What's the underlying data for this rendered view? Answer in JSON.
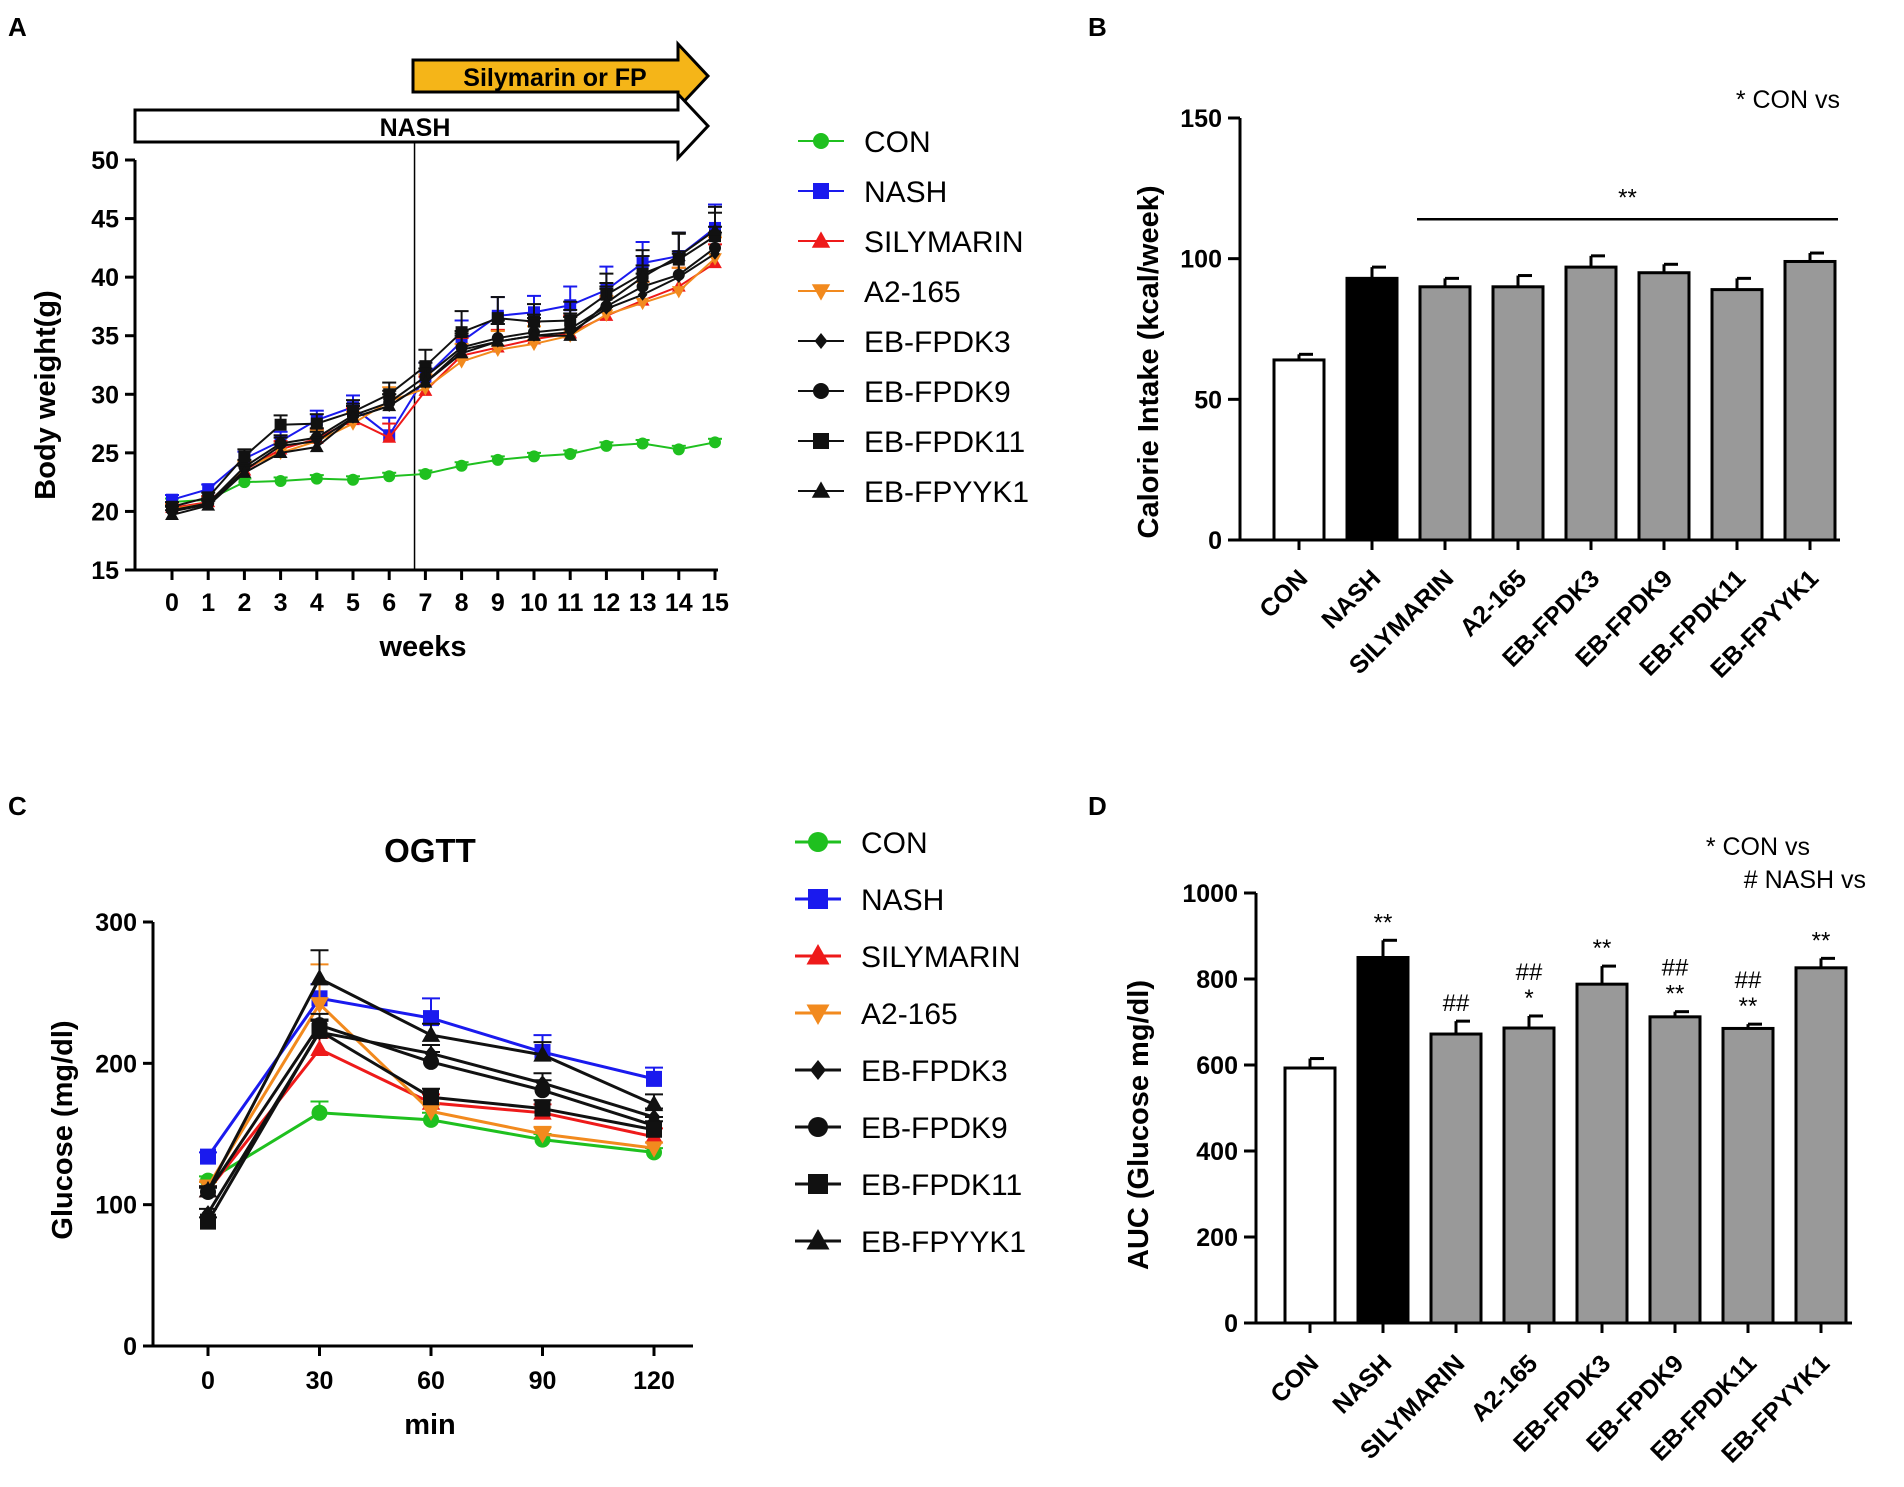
{
  "figure": {
    "labels": {
      "a": "A",
      "b": "B",
      "c": "C",
      "d": "D"
    }
  },
  "chart_data": [
    {
      "id": "A",
      "type": "line",
      "xlabel": "weeks",
      "ylabel": "Body weight(g)",
      "ylim": [
        15,
        50
      ],
      "yticks": [
        15,
        20,
        25,
        30,
        35,
        40,
        45,
        50
      ],
      "x": [
        0,
        1,
        2,
        3,
        4,
        5,
        6,
        7,
        8,
        9,
        10,
        11,
        12,
        13,
        14,
        15
      ],
      "annotations": {
        "treatment": "Silymarin or FP",
        "diet": "NASH"
      },
      "treatment_start_week": 6.7,
      "series": [
        {
          "name": "CON",
          "color": "#1fc01f",
          "marker": "circle",
          "values": [
            20.8,
            21.0,
            22.5,
            22.6,
            22.8,
            22.7,
            23.0,
            23.2,
            23.9,
            24.4,
            24.7,
            24.9,
            25.6,
            25.8,
            25.3,
            25.9
          ],
          "err": [
            0.3,
            0.3,
            0.3,
            0.3,
            0.3,
            0.3,
            0.3,
            0.3,
            0.3,
            0.3,
            0.3,
            0.3,
            0.3,
            0.3,
            0.3,
            0.3
          ]
        },
        {
          "name": "NASH",
          "color": "#1a1aee",
          "marker": "square",
          "values": [
            21.0,
            21.9,
            24.5,
            26.0,
            27.8,
            28.9,
            26.5,
            31.5,
            34.5,
            36.7,
            37.0,
            37.6,
            38.9,
            41.2,
            41.8,
            44.2
          ],
          "err": [
            0.4,
            0.4,
            0.6,
            0.8,
            0.8,
            1.0,
            1.5,
            1.2,
            1.8,
            1.6,
            1.4,
            1.6,
            2.0,
            1.8,
            2.0,
            2.0
          ]
        },
        {
          "name": "SILYMARIN",
          "color": "#ee1a1a",
          "marker": "triangle",
          "values": [
            20.3,
            20.8,
            23.5,
            25.3,
            26.2,
            27.8,
            26.3,
            30.3,
            33.3,
            34.0,
            34.7,
            35.2,
            36.7,
            38.0,
            39.2,
            41.2
          ],
          "err": [
            0.4,
            0.5,
            0.6,
            0.7,
            0.8,
            1.0,
            1.2,
            1.2,
            1.5,
            1.5,
            1.5,
            1.5,
            1.5,
            1.6,
            1.6,
            1.6
          ]
        },
        {
          "name": "A2-165",
          "color": "#f28a1e",
          "marker": "triangle-down",
          "values": [
            20.2,
            20.7,
            23.7,
            25.0,
            26.0,
            27.5,
            29.4,
            30.5,
            32.8,
            33.8,
            34.3,
            35.0,
            36.8,
            37.8,
            38.8,
            41.6
          ],
          "err": [
            0.4,
            0.4,
            0.6,
            0.8,
            0.9,
            1.0,
            1.2,
            1.2,
            1.5,
            1.6,
            1.5,
            1.6,
            1.6,
            1.8,
            2.0,
            1.8
          ]
        },
        {
          "name": "EB-FPDK3",
          "color": "#111111",
          "marker": "diamond",
          "values": [
            20.0,
            20.6,
            23.5,
            25.6,
            26.0,
            28.0,
            29.0,
            31.0,
            33.8,
            34.5,
            35.0,
            35.3,
            37.3,
            38.5,
            40.0,
            42.0
          ],
          "err": [
            0.4,
            0.4,
            0.6,
            0.7,
            0.8,
            1.0,
            1.0,
            1.2,
            1.4,
            1.5,
            1.5,
            1.6,
            1.7,
            1.8,
            2.0,
            1.8
          ]
        },
        {
          "name": "EB-FPDK9",
          "color": "#111111",
          "marker": "circle",
          "values": [
            20.1,
            20.7,
            23.8,
            25.8,
            26.3,
            28.2,
            29.3,
            31.5,
            34.0,
            34.8,
            35.3,
            35.6,
            37.5,
            39.2,
            40.2,
            42.5
          ],
          "err": [
            0.4,
            0.4,
            0.6,
            0.7,
            0.8,
            1.0,
            1.0,
            1.2,
            1.4,
            1.5,
            1.5,
            1.6,
            1.7,
            1.8,
            2.0,
            1.8
          ]
        },
        {
          "name": "EB-FPDK11",
          "color": "#111111",
          "marker": "square",
          "values": [
            20.4,
            21.2,
            24.7,
            27.4,
            27.5,
            28.5,
            30.0,
            32.4,
            35.3,
            36.5,
            36.2,
            36.3,
            38.5,
            40.3,
            41.5,
            43.5
          ],
          "err": [
            0.4,
            0.4,
            0.6,
            0.8,
            0.8,
            1.0,
            1.0,
            1.4,
            1.8,
            1.8,
            1.5,
            1.6,
            1.8,
            2.0,
            2.2,
            2.0
          ]
        },
        {
          "name": "EB-FPYYK1",
          "color": "#111111",
          "marker": "triangle",
          "values": [
            19.7,
            20.5,
            23.3,
            25.0,
            25.5,
            28.0,
            29.0,
            31.0,
            33.5,
            34.5,
            35.0,
            35.0,
            37.8,
            40.0,
            41.8,
            44.0
          ],
          "err": [
            0.4,
            0.4,
            0.6,
            0.7,
            0.8,
            1.0,
            1.0,
            1.2,
            1.5,
            1.5,
            1.5,
            1.6,
            1.7,
            1.8,
            2.0,
            2.0
          ]
        }
      ]
    },
    {
      "id": "B",
      "type": "bar",
      "ylabel": "Calorie Intake (kcal/week)",
      "ylim": [
        0,
        150
      ],
      "yticks": [
        0,
        50,
        100,
        150
      ],
      "categories": [
        "CON",
        "NASH",
        "SILYMARIN",
        "A2-165",
        "EB-FPDK3",
        "EB-FPDK9",
        "EB-FPDK11",
        "EB-FPYYK1"
      ],
      "values": [
        64,
        93,
        90,
        90,
        97,
        95,
        89,
        99
      ],
      "err": [
        2,
        4,
        3,
        4,
        4,
        3,
        4,
        3
      ],
      "fills": [
        "#ffffff",
        "#000000",
        "#999999",
        "#999999",
        "#999999",
        "#999999",
        "#999999",
        "#999999"
      ],
      "legend_note": "* CON vs",
      "bracket": {
        "label": "**",
        "from": "SILYMARIN",
        "to": "EB-FPYYK1",
        "y": 114
      }
    },
    {
      "id": "C",
      "type": "line",
      "title": "OGTT",
      "xlabel": "min",
      "ylabel": "Glucose (mg/dl)",
      "ylim": [
        0,
        300
      ],
      "yticks": [
        0,
        100,
        200,
        300
      ],
      "x": [
        0,
        30,
        60,
        90,
        120
      ],
      "series": [
        {
          "name": "CON",
          "color": "#1fc01f",
          "marker": "circle",
          "values": [
            117,
            165,
            160,
            146,
            137
          ],
          "err": [
            3,
            8,
            5,
            4,
            3
          ]
        },
        {
          "name": "NASH",
          "color": "#1a1aee",
          "marker": "square",
          "values": [
            134,
            246,
            232,
            208,
            189
          ],
          "err": [
            3,
            10,
            14,
            12,
            8
          ]
        },
        {
          "name": "SILYMARIN",
          "color": "#ee1a1a",
          "marker": "triangle",
          "values": [
            110,
            210,
            172,
            165,
            148
          ],
          "err": [
            3,
            8,
            6,
            6,
            6
          ]
        },
        {
          "name": "A2-165",
          "color": "#f28a1e",
          "marker": "triangle-down",
          "values": [
            113,
            242,
            166,
            150,
            140
          ],
          "err": [
            3,
            28,
            6,
            5,
            4
          ]
        },
        {
          "name": "EB-FPDK3",
          "color": "#111111",
          "marker": "diamond",
          "values": [
            94,
            222,
            207,
            186,
            162
          ],
          "err": [
            3,
            8,
            6,
            7,
            6
          ]
        },
        {
          "name": "EB-FPDK9",
          "color": "#111111",
          "marker": "circle",
          "values": [
            109,
            227,
            201,
            181,
            156
          ],
          "err": [
            3,
            8,
            7,
            7,
            6
          ]
        },
        {
          "name": "EB-FPDK11",
          "color": "#111111",
          "marker": "square",
          "values": [
            88,
            223,
            176,
            168,
            153
          ],
          "err": [
            3,
            8,
            6,
            6,
            6
          ]
        },
        {
          "name": "EB-FPYYK1",
          "color": "#111111",
          "marker": "triangle",
          "values": [
            110,
            260,
            220,
            206,
            171
          ],
          "err": [
            3,
            20,
            8,
            9,
            7
          ]
        }
      ]
    },
    {
      "id": "D",
      "type": "bar",
      "ylabel": "AUC (Glucose mg/dl)",
      "ylim": [
        0,
        1000
      ],
      "yticks": [
        0,
        200,
        400,
        600,
        800,
        1000
      ],
      "categories": [
        "CON",
        "NASH",
        "SILYMARIN",
        "A2-165",
        "EB-FPDK3",
        "EB-FPDK9",
        "EB-FPDK11",
        "EB-FPYYK1"
      ],
      "values": [
        593,
        850,
        672,
        686,
        788,
        712,
        685,
        826
      ],
      "err": [
        22,
        40,
        30,
        28,
        42,
        12,
        10,
        22
      ],
      "fills": [
        "#ffffff",
        "#000000",
        "#999999",
        "#999999",
        "#999999",
        "#999999",
        "#999999",
        "#999999"
      ],
      "legend_note": [
        "* CON vs",
        "# NASH vs"
      ],
      "significance": [
        {
          "category": "NASH",
          "star": "**",
          "hash": ""
        },
        {
          "category": "SILYMARIN",
          "star": "",
          "hash": "##"
        },
        {
          "category": "A2-165",
          "star": "*",
          "hash": "##"
        },
        {
          "category": "EB-FPDK3",
          "star": "**",
          "hash": ""
        },
        {
          "category": "EB-FPDK9",
          "star": "**",
          "hash": "##"
        },
        {
          "category": "EB-FPDK11",
          "star": "**",
          "hash": "##"
        },
        {
          "category": "EB-FPYYK1",
          "star": "**",
          "hash": ""
        }
      ]
    }
  ]
}
